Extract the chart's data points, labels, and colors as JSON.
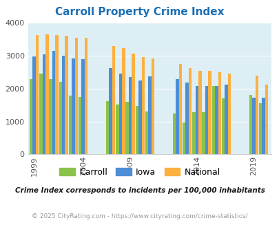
{
  "title": "Carroll Property Crime Index",
  "subtitle": "Crime Index corresponds to incidents per 100,000 inhabitants",
  "footer": "© 2025 CityRating.com - https://www.cityrating.com/crime-statistics/",
  "years": [
    1999,
    2000,
    2001,
    2002,
    2003,
    2004,
    2007,
    2008,
    2009,
    2010,
    2011,
    2012,
    2013,
    2014,
    2015,
    2016,
    2017,
    2019,
    2020
  ],
  "carroll": [
    2280,
    2450,
    2280,
    2200,
    1780,
    1750,
    1620,
    1520,
    1600,
    1480,
    1300,
    1250,
    970,
    1280,
    1280,
    2080,
    1700,
    1800,
    1550
  ],
  "iowa": [
    2980,
    3040,
    3150,
    3000,
    2920,
    2900,
    2630,
    2450,
    2340,
    2240,
    2360,
    2280,
    2190,
    2070,
    2070,
    2070,
    2120,
    1730,
    1720
  ],
  "national": [
    3620,
    3650,
    3620,
    3600,
    3530,
    3530,
    3290,
    3220,
    3060,
    2960,
    2920,
    2750,
    2620,
    2530,
    2530,
    2500,
    2450,
    2390,
    2110
  ],
  "tick_years": [
    1999,
    2004,
    2009,
    2014,
    2019
  ],
  "ylim": [
    0,
    4000
  ],
  "yticks": [
    0,
    1000,
    2000,
    3000,
    4000
  ],
  "carroll_color": "#8bc34a",
  "iowa_color": "#4d8ed4",
  "national_color": "#fbb040",
  "bg_color": "#ddeef5",
  "title_color": "#1a6fb5",
  "subtitle_color": "#1a1a1a",
  "footer_color": "#999999"
}
